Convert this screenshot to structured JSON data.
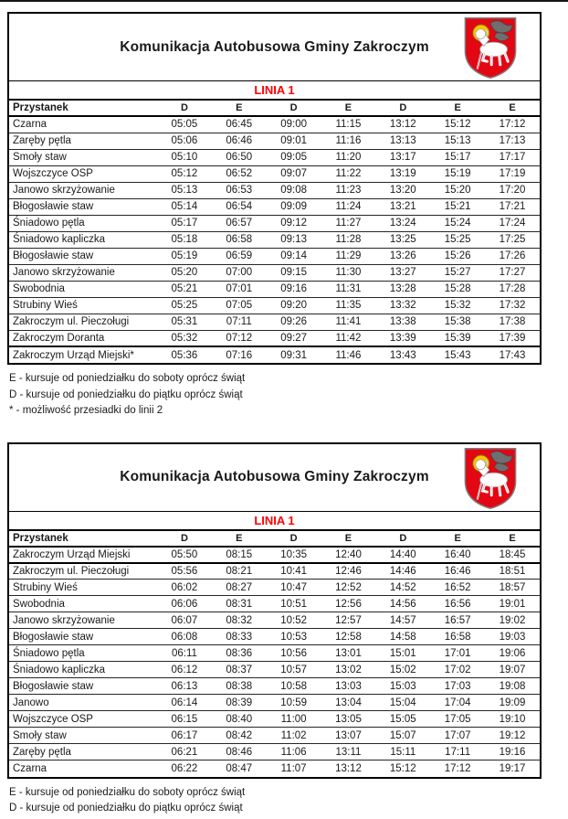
{
  "shared": {
    "title": "Komunikacja Autobusowa Gminy Zakroczym",
    "line_label": "LINIA 1",
    "stop_header": "Przystanek",
    "codes": [
      "D",
      "E",
      "D",
      "E",
      "D",
      "E",
      "E"
    ]
  },
  "colors": {
    "line_red": "#ff0000",
    "shield_red": "#e30613",
    "halo_yellow": "#fbc500"
  },
  "tables": [
    {
      "rows": [
        {
          "stop": "Czarna",
          "times": [
            "05:05",
            "06:45",
            "09:00",
            "11:15",
            "13:12",
            "15:12",
            "17:12"
          ]
        },
        {
          "stop": "Zaręby pętla",
          "times": [
            "05:06",
            "06:46",
            "09:01",
            "11:16",
            "13:13",
            "15:13",
            "17:13"
          ]
        },
        {
          "stop": "Smoły staw",
          "times": [
            "05:10",
            "06:50",
            "09:05",
            "11:20",
            "13:17",
            "15:17",
            "17:17"
          ]
        },
        {
          "stop": "Wojszczyce OSP",
          "times": [
            "05:12",
            "06:52",
            "09:07",
            "11:22",
            "13:19",
            "15:19",
            "17:19"
          ]
        },
        {
          "stop": "Janowo skrzyżowanie",
          "times": [
            "05:13",
            "06:53",
            "09:08",
            "11:23",
            "13:20",
            "15:20",
            "17:20"
          ]
        },
        {
          "stop": "Błogosławie staw",
          "times": [
            "05:14",
            "06:54",
            "09:09",
            "11:24",
            "13:21",
            "15:21",
            "17:21"
          ]
        },
        {
          "stop": "Śniadowo pętla",
          "times": [
            "05:17",
            "06:57",
            "09:12",
            "11:27",
            "13:24",
            "15:24",
            "17:24"
          ]
        },
        {
          "stop": "Śniadowo kapliczka",
          "times": [
            "05:18",
            "06:58",
            "09:13",
            "11:28",
            "13:25",
            "15:25",
            "17:25"
          ]
        },
        {
          "stop": "Błogosławie staw",
          "times": [
            "05:19",
            "06:59",
            "09:14",
            "11:29",
            "13:26",
            "15:26",
            "17:26"
          ]
        },
        {
          "stop": "Janowo skrzyżowanie",
          "times": [
            "05:20",
            "07:00",
            "09:15",
            "11:30",
            "13:27",
            "15:27",
            "17:27"
          ]
        },
        {
          "stop": "Swobodnia",
          "times": [
            "05:21",
            "07:01",
            "09:16",
            "11:31",
            "13:28",
            "15:28",
            "17:28"
          ]
        },
        {
          "stop": "Strubiny Wieś",
          "times": [
            "05:25",
            "07:05",
            "09:20",
            "11:35",
            "13:32",
            "15:32",
            "17:32"
          ]
        },
        {
          "stop": "Zakroczym ul. Pieczoługi",
          "times": [
            "05:31",
            "07:11",
            "09:26",
            "11:41",
            "13:38",
            "15:38",
            "17:38"
          ]
        },
        {
          "stop": "Zakroczym Doranta",
          "times": [
            "05:32",
            "07:12",
            "09:27",
            "11:42",
            "13:39",
            "15:39",
            "17:39"
          ]
        },
        {
          "stop": "Zakroczym Urząd Miejski*",
          "times": [
            "05:36",
            "07:16",
            "09:31",
            "11:46",
            "13:43",
            "15:43",
            "17:43"
          ]
        }
      ],
      "emphasis": "last-row-top",
      "footnotes": [
        "E - kursuje od poniedziałku do soboty oprócz świąt",
        "D - kursuje od poniedziałku do piątku oprócz świąt",
        "* - możliwość przesiadki do linii 2"
      ]
    },
    {
      "rows": [
        {
          "stop": "Zakroczym Urząd Miejski",
          "times": [
            "05:50",
            "08:15",
            "10:35",
            "12:40",
            "14:40",
            "16:40",
            "18:45"
          ]
        },
        {
          "stop": "Zakroczym ul. Pieczoługi",
          "times": [
            "05:56",
            "08:21",
            "10:41",
            "12:46",
            "14:46",
            "16:46",
            "18:51"
          ]
        },
        {
          "stop": "Strubiny Wieś",
          "times": [
            "06:02",
            "08:27",
            "10:47",
            "12:52",
            "14:52",
            "16:52",
            "18:57"
          ]
        },
        {
          "stop": "Swobodnia",
          "times": [
            "06:06",
            "08:31",
            "10:51",
            "12:56",
            "14:56",
            "16:56",
            "19:01"
          ]
        },
        {
          "stop": "Janowo skrzyżowanie",
          "times": [
            "06:07",
            "08:32",
            "10:52",
            "12:57",
            "14:57",
            "16:57",
            "19:02"
          ]
        },
        {
          "stop": "Błogosławie staw",
          "times": [
            "06:08",
            "08:33",
            "10:53",
            "12:58",
            "14:58",
            "16:58",
            "19:03"
          ]
        },
        {
          "stop": "Śniadowo pętla",
          "times": [
            "06:11",
            "08:36",
            "10:56",
            "13:01",
            "15:01",
            "17:01",
            "19:06"
          ]
        },
        {
          "stop": "Śniadowo kapliczka",
          "times": [
            "06:12",
            "08:37",
            "10:57",
            "13:02",
            "15:02",
            "17:02",
            "19:07"
          ]
        },
        {
          "stop": "Błogosławie staw",
          "times": [
            "06:13",
            "08:38",
            "10:58",
            "13:03",
            "15:03",
            "17:03",
            "19:08"
          ]
        },
        {
          "stop": "Janowo",
          "times": [
            "06:14",
            "08:39",
            "10:59",
            "13:04",
            "15:04",
            "17:04",
            "19:09"
          ]
        },
        {
          "stop": "Wojszczyce OSP",
          "times": [
            "06:15",
            "08:40",
            "11:00",
            "13:05",
            "15:05",
            "17:05",
            "19:10"
          ]
        },
        {
          "stop": "Smoły staw",
          "times": [
            "06:17",
            "08:42",
            "11:02",
            "13:07",
            "15:07",
            "17:07",
            "19:12"
          ]
        },
        {
          "stop": "Zaręby pętla",
          "times": [
            "06:21",
            "08:46",
            "11:06",
            "13:11",
            "15:11",
            "17:11",
            "19:16"
          ]
        },
        {
          "stop": "Czarna",
          "times": [
            "06:22",
            "08:47",
            "11:07",
            "13:12",
            "15:12",
            "17:12",
            "19:17"
          ]
        }
      ],
      "emphasis": "first-row-bottom",
      "footnotes": [
        "E - kursuje od poniedziałku do soboty oprócz świąt",
        "D - kursuje od poniedziałku do piątku oprócz świąt"
      ]
    }
  ]
}
